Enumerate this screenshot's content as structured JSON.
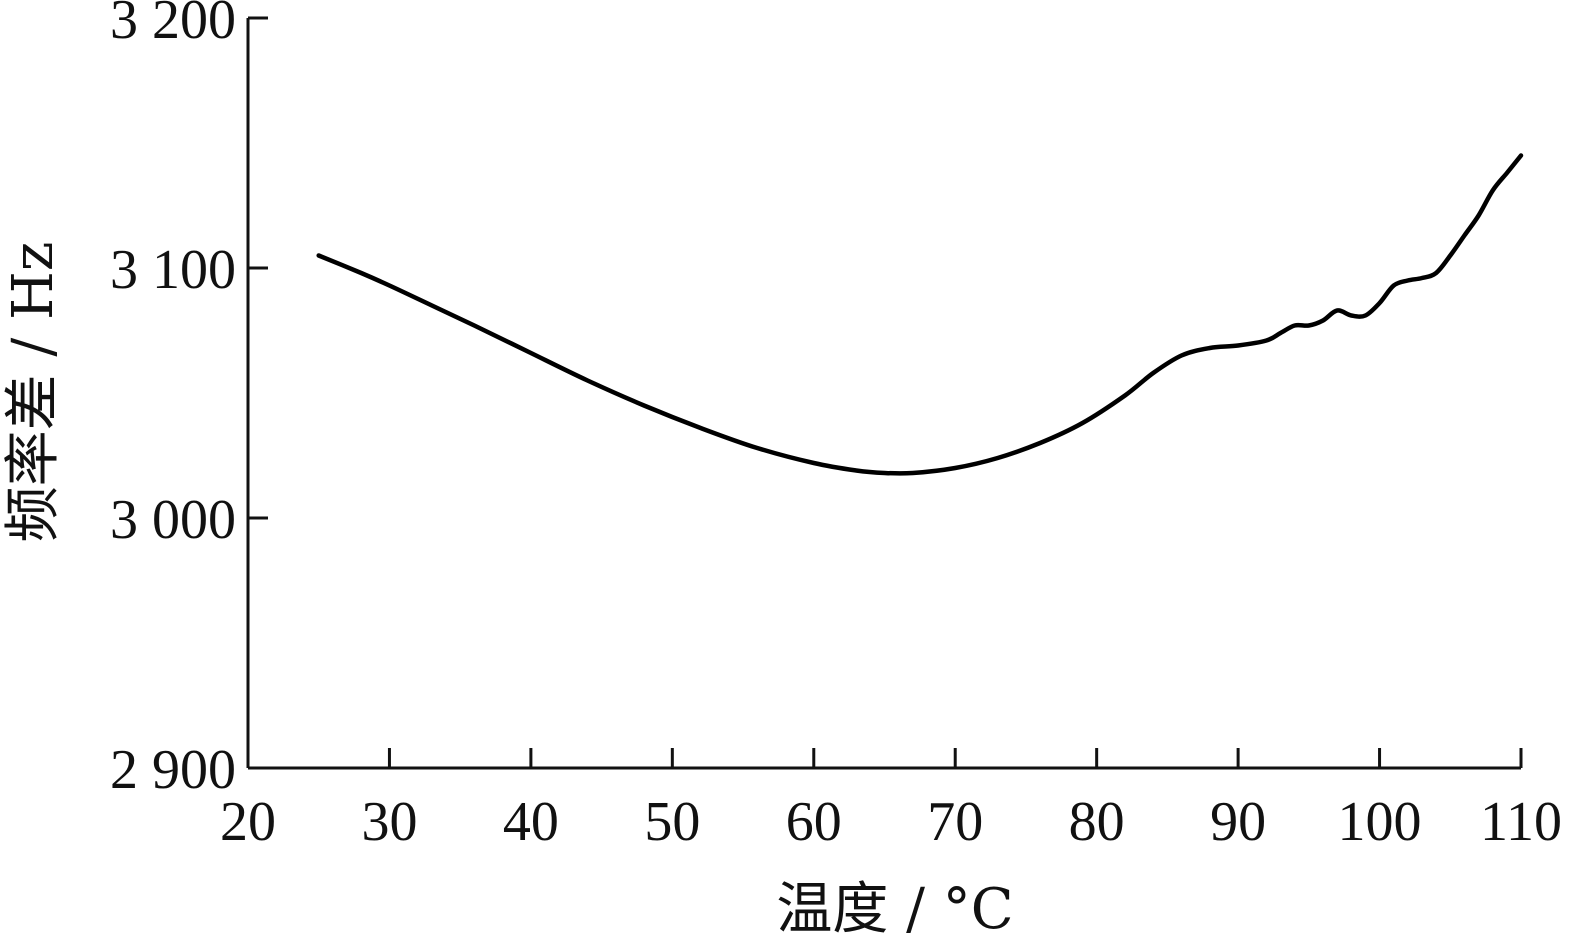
{
  "chart_data": {
    "type": "line",
    "title": "",
    "xlabel": "温度 / °C",
    "ylabel": "频率差 / Hz",
    "xlim": [
      20,
      110
    ],
    "ylim": [
      2900,
      3200
    ],
    "xticks": [
      20,
      30,
      40,
      50,
      60,
      70,
      80,
      90,
      100,
      110
    ],
    "xtick_labels": [
      "20",
      "30",
      "40",
      "50",
      "60",
      "70",
      "80",
      "90",
      "100",
      "110"
    ],
    "yticks": [
      2900,
      3000,
      3100,
      3200
    ],
    "ytick_labels": [
      "2 900",
      "3 000",
      "3 100",
      "3 200"
    ],
    "grid": false,
    "series": [
      {
        "color": "#000000",
        "x": [
          25,
          28,
          30,
          33,
          36,
          40,
          44,
          48,
          52,
          56,
          60,
          63,
          65,
          67,
          70,
          73,
          76,
          79,
          82,
          84,
          86,
          88,
          90,
          92,
          93,
          94,
          95,
          96,
          97,
          98,
          99,
          100,
          101,
          102,
          103,
          104,
          105,
          106,
          107,
          108,
          109,
          110
        ],
        "y": [
          3105,
          3098,
          3093,
          3085,
          3077,
          3066,
          3055,
          3045,
          3036,
          3028,
          3022,
          3019,
          3018,
          3018,
          3020,
          3024,
          3030,
          3038,
          3049,
          3058,
          3065,
          3068,
          3069,
          3071,
          3074,
          3077,
          3077,
          3079,
          3083,
          3081,
          3081,
          3086,
          3093,
          3095,
          3096,
          3098,
          3105,
          3113,
          3121,
          3131,
          3138,
          3145
        ]
      }
    ]
  }
}
